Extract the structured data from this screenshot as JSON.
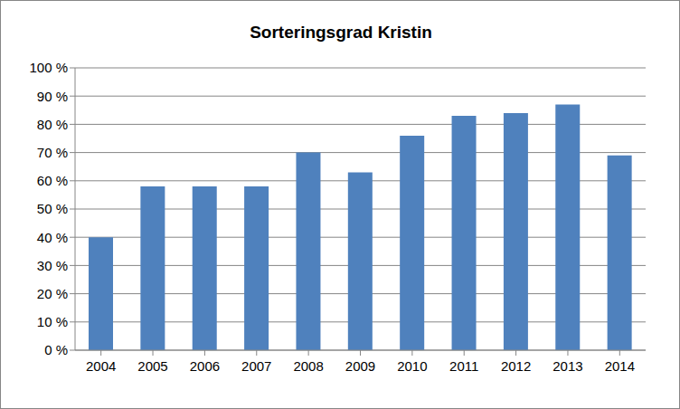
{
  "chart_data": {
    "type": "bar",
    "title": "Sorteringsgrad Kristin",
    "categories": [
      "2004",
      "2005",
      "2006",
      "2007",
      "2008",
      "2009",
      "2010",
      "2011",
      "2012",
      "2013",
      "2014"
    ],
    "values": [
      40,
      58,
      58,
      58,
      70,
      63,
      76,
      83,
      84,
      87,
      69
    ],
    "color": "#4f81bd",
    "ylim": [
      0,
      100
    ],
    "yticks": [
      {
        "value": 0,
        "label": "0 %"
      },
      {
        "value": 10,
        "label": "10 %"
      },
      {
        "value": 20,
        "label": "20 %"
      },
      {
        "value": 30,
        "label": "30 %"
      },
      {
        "value": 40,
        "label": "40 %"
      },
      {
        "value": 50,
        "label": "50 %"
      },
      {
        "value": 60,
        "label": "60 %"
      },
      {
        "value": 70,
        "label": "70 %"
      },
      {
        "value": 80,
        "label": "80 %"
      },
      {
        "value": 90,
        "label": "90 %"
      },
      {
        "value": 100,
        "label": "100 %"
      }
    ],
    "grid": true
  }
}
